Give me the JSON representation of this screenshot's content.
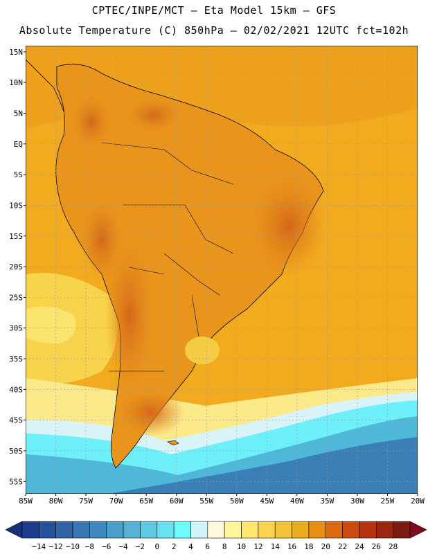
{
  "header": {
    "line1": "CPTEC/INPE/MCT –  Eta Model 15km – GFS",
    "line2": "Absolute Temperature (C) 850hPa – 02/02/2021 12UTC fct=102h"
  },
  "map": {
    "lon_range": [
      -85,
      -20
    ],
    "lat_range": [
      -57,
      16
    ],
    "lat_ticks": [
      "15N",
      "10N",
      "5N",
      "EQ",
      "5S",
      "10S",
      "15S",
      "20S",
      "25S",
      "30S",
      "35S",
      "40S",
      "45S",
      "50S",
      "55S"
    ],
    "lat_values": [
      15,
      10,
      5,
      0,
      -5,
      -10,
      -15,
      -20,
      -25,
      -30,
      -35,
      -40,
      -45,
      -50,
      -55
    ],
    "lon_ticks": [
      "85W",
      "80W",
      "75W",
      "70W",
      "65W",
      "60W",
      "55W",
      "50W",
      "45W",
      "40W",
      "35W",
      "30W",
      "25W",
      "20W"
    ],
    "lon_values": [
      -85,
      -80,
      -75,
      -70,
      -65,
      -60,
      -55,
      -50,
      -45,
      -40,
      -35,
      -30,
      -25,
      -20
    ]
  },
  "colorbar": {
    "labels": [
      "-14",
      "-12",
      "-10",
      "-8",
      "-6",
      "-4",
      "-2",
      "0",
      "2",
      "4",
      "6",
      "8",
      "10",
      "12",
      "14",
      "16",
      "18",
      "20",
      "22",
      "24",
      "26",
      "28"
    ],
    "colors": [
      "#1f3d8f",
      "#27509b",
      "#2f63a6",
      "#3776b2",
      "#3f88bd",
      "#4a9ec9",
      "#55b4d6",
      "#5dcbe3",
      "#66e2f0",
      "#6ffcff",
      "#d0f6fc",
      "#fff8dc",
      "#fff59a",
      "#ffe770",
      "#f8d450",
      "#f2c23a",
      "#ebad20",
      "#e68f14",
      "#de6a10",
      "#cc4a10",
      "#b3330e",
      "#9a2510",
      "#7a1a12"
    ],
    "low_arrow_color": "#1a2f7a",
    "high_arrow_color": "#800a1e"
  }
}
